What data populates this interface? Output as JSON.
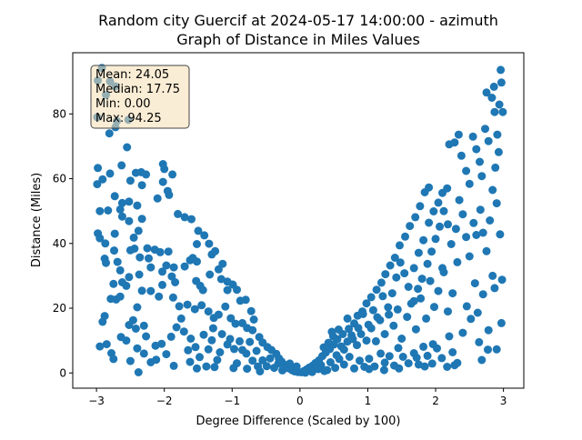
{
  "chart_data": {
    "type": "scatter",
    "title_line1": "Random city Guercif at 2024-05-17 14:00:00  - azimuth",
    "title_line2": "Graph of Distance in Miles Values",
    "xlabel": "Degree Difference (Scaled by 100)",
    "ylabel": "Distance (Miles)",
    "xlim": [
      -3.35,
      3.3
    ],
    "ylim": [
      -4.7,
      98.9
    ],
    "xticks": [
      -3,
      -2,
      -1,
      0,
      1,
      2,
      3
    ],
    "yticks": [
      0,
      20,
      40,
      60,
      80
    ],
    "xtick_labels": [
      "−3",
      "−2",
      "−1",
      "0",
      "1",
      "2",
      "3"
    ],
    "ytick_labels": [
      "0",
      "20",
      "40",
      "60",
      "80"
    ],
    "grid": false,
    "marker_color": "#1f77b4",
    "stats": {
      "mean": "Mean: 24.05",
      "median": "Median: 17.75",
      "min": "Min: 0.00",
      "max": "Max: 94.25"
    },
    "stats_box_fill": "#f5deb3",
    "points": [
      [
        -2.92,
        94.2
      ],
      [
        -2.98,
        90.3
      ],
      [
        -2.8,
        90.0
      ],
      [
        -2.72,
        88.5
      ],
      [
        -2.86,
        85.9
      ],
      [
        -2.99,
        79.0
      ],
      [
        -2.7,
        77.8
      ],
      [
        -2.53,
        78.2
      ],
      [
        -2.72,
        75.9
      ],
      [
        -2.81,
        74.0
      ],
      [
        -2.55,
        69.7
      ],
      [
        -2.63,
        64.1
      ],
      [
        -2.98,
        63.3
      ],
      [
        -2.99,
        58.3
      ],
      [
        -2.91,
        59.8
      ],
      [
        -2.8,
        61.6
      ],
      [
        -2.5,
        59.4
      ],
      [
        -2.42,
        61.8
      ],
      [
        -2.34,
        62.0
      ],
      [
        -2.27,
        61.3
      ],
      [
        -2.33,
        58.0
      ],
      [
        -2.02,
        64.5
      ],
      [
        -2.0,
        63.0
      ],
      [
        -1.88,
        61.3
      ],
      [
        -2.02,
        59.0
      ],
      [
        -1.95,
        56.2
      ],
      [
        -1.93,
        55.0
      ],
      [
        -2.1,
        53.9
      ],
      [
        -2.73,
        54.6
      ],
      [
        -2.95,
        50.0
      ],
      [
        -2.83,
        50.2
      ],
      [
        -2.65,
        50.5
      ],
      [
        -2.62,
        52.5
      ],
      [
        -2.52,
        52.9
      ],
      [
        -2.4,
        51.7
      ],
      [
        -2.62,
        48.3
      ],
      [
        -2.52,
        46.9
      ],
      [
        -2.33,
        47.6
      ],
      [
        -2.38,
        43.9
      ],
      [
        -2.45,
        41.8
      ],
      [
        -2.73,
        43.0
      ],
      [
        -2.98,
        43.1
      ],
      [
        -2.95,
        41.6
      ],
      [
        -2.87,
        40.0
      ],
      [
        -2.74,
        37.8
      ],
      [
        -2.88,
        35.3
      ],
      [
        -2.86,
        34.0
      ],
      [
        -2.69,
        34.3
      ],
      [
        -2.65,
        31.7
      ],
      [
        -2.5,
        37.9
      ],
      [
        -2.44,
        38.4
      ],
      [
        -2.36,
        35.7
      ],
      [
        -2.25,
        38.5
      ],
      [
        -2.14,
        38.1
      ],
      [
        -2.23,
        35.4
      ],
      [
        -2.2,
        32.6
      ],
      [
        -2.06,
        37.3
      ],
      [
        -1.94,
        37.5
      ],
      [
        -1.97,
        33.2
      ],
      [
        -1.86,
        32.6
      ],
      [
        -1.89,
        29.8
      ],
      [
        -2.03,
        31.3
      ],
      [
        -1.84,
        28.0
      ],
      [
        -1.8,
        49.1
      ],
      [
        -1.7,
        48.1
      ],
      [
        -1.6,
        47.5
      ],
      [
        -1.5,
        43.9
      ],
      [
        -1.41,
        42.5
      ],
      [
        -1.34,
        39.9
      ],
      [
        -1.3,
        36.6
      ],
      [
        -1.25,
        37.6
      ],
      [
        -1.52,
        39.8
      ],
      [
        -1.58,
        35.5
      ],
      [
        -1.52,
        34.4
      ],
      [
        -1.62,
        34.8
      ],
      [
        -1.7,
        32.9
      ],
      [
        -1.53,
        28.4
      ],
      [
        -1.47,
        26.9
      ],
      [
        -1.43,
        25.6
      ],
      [
        -1.33,
        30.4
      ],
      [
        -1.2,
        32.0
      ],
      [
        -1.14,
        33.7
      ],
      [
        -1.16,
        29.0
      ],
      [
        -1.07,
        28.2
      ],
      [
        -1.07,
        25.6
      ],
      [
        -0.99,
        27.3
      ],
      [
        -0.93,
        25.7
      ],
      [
        -0.88,
        22.3
      ],
      [
        -0.8,
        22.6
      ],
      [
        -0.72,
        19.1
      ],
      [
        -0.68,
        16.5
      ],
      [
        -2.56,
        26.9
      ],
      [
        -2.71,
        22.7
      ],
      [
        -2.65,
        23.6
      ],
      [
        -2.79,
        22.9
      ],
      [
        -2.75,
        27.5
      ],
      [
        -2.62,
        28.0
      ],
      [
        -2.52,
        29.6
      ],
      [
        -2.37,
        30.4
      ],
      [
        -2.33,
        25.4
      ],
      [
        -2.2,
        25.3
      ],
      [
        -2.08,
        23.6
      ],
      [
        -2.03,
        27.2
      ],
      [
        -1.87,
        23.3
      ],
      [
        -1.78,
        20.6
      ],
      [
        -1.66,
        21.1
      ],
      [
        -1.55,
        19.7
      ],
      [
        -1.45,
        20.9
      ],
      [
        -1.35,
        19.0
      ],
      [
        -1.27,
        17.0
      ],
      [
        -1.2,
        18.0
      ],
      [
        -1.1,
        20.5
      ],
      [
        -1.02,
        16.9
      ],
      [
        -0.95,
        15.2
      ],
      [
        -0.85,
        15.4
      ],
      [
        -0.78,
        13.9
      ],
      [
        -0.7,
        13.2
      ],
      [
        -0.6,
        11.1
      ],
      [
        -0.55,
        9.4
      ],
      [
        -0.48,
        8.0
      ],
      [
        -0.42,
        7.1
      ],
      [
        -0.35,
        5.9
      ],
      [
        -0.31,
        4.5
      ],
      [
        -0.27,
        3.5
      ],
      [
        -0.22,
        2.5
      ],
      [
        -0.18,
        1.5
      ],
      [
        -0.12,
        0.9
      ],
      [
        -0.08,
        0.5
      ],
      [
        -0.03,
        0.3
      ],
      [
        -2.91,
        15.8
      ],
      [
        -2.88,
        17.6
      ],
      [
        -2.95,
        8.2
      ],
      [
        -2.85,
        8.9
      ],
      [
        -2.78,
        6.1
      ],
      [
        -2.75,
        4.3
      ],
      [
        -2.64,
        11.1
      ],
      [
        -2.56,
        10.0
      ],
      [
        -2.52,
        14.8
      ],
      [
        -2.46,
        16.3
      ],
      [
        -2.4,
        20.3
      ],
      [
        -2.42,
        13.7
      ],
      [
        -2.3,
        14.6
      ],
      [
        -2.27,
        11.3
      ],
      [
        -2.4,
        7.6
      ],
      [
        -2.3,
        6.0
      ],
      [
        -2.2,
        3.3
      ],
      [
        -2.13,
        8.4
      ],
      [
        -2.12,
        4.1
      ],
      [
        -2.04,
        9.0
      ],
      [
        -1.97,
        5.8
      ],
      [
        -1.9,
        11.2
      ],
      [
        -1.82,
        14.1
      ],
      [
        -1.75,
        16.8
      ],
      [
        -1.71,
        12.8
      ],
      [
        -1.65,
        7.0
      ],
      [
        -1.61,
        10.6
      ],
      [
        -1.54,
        8.0
      ],
      [
        -1.48,
        4.9
      ],
      [
        -1.42,
        11.8
      ],
      [
        -1.35,
        7.3
      ],
      [
        -1.3,
        10.1
      ],
      [
        -1.28,
        13.8
      ],
      [
        -1.22,
        4.0
      ],
      [
        -1.18,
        6.4
      ],
      [
        -1.15,
        12.0
      ],
      [
        -1.07,
        8.8
      ],
      [
        -1.03,
        10.5
      ],
      [
        -0.97,
        7.4
      ],
      [
        -0.93,
        3.0
      ],
      [
        -0.89,
        9.8
      ],
      [
        -0.85,
        7.1
      ],
      [
        -0.79,
        6.0
      ],
      [
        -0.74,
        9.6
      ],
      [
        -0.7,
        3.8
      ],
      [
        -0.64,
        6.8
      ],
      [
        -0.62,
        2.0
      ],
      [
        -0.55,
        3.9
      ],
      [
        -0.49,
        2.1
      ],
      [
        -0.44,
        4.5
      ],
      [
        -0.38,
        1.6
      ],
      [
        -0.32,
        2.9
      ],
      [
        -0.26,
        0.8
      ],
      [
        -0.2,
        1.8
      ],
      [
        -0.15,
        2.9
      ],
      [
        -0.09,
        1.2
      ],
      [
        -0.05,
        2.0
      ],
      [
        -2.5,
        3.7
      ],
      [
        -2.38,
        0.2
      ],
      [
        -1.86,
        2.2
      ],
      [
        -1.62,
        3.4
      ],
      [
        -1.52,
        1.4
      ],
      [
        -1.38,
        2.0
      ],
      [
        -1.26,
        1.8
      ],
      [
        -0.98,
        1.5
      ],
      [
        -0.78,
        1.3
      ],
      [
        -0.59,
        0.5
      ],
      [
        0.02,
        0.2
      ],
      [
        0.06,
        0.6
      ],
      [
        0.1,
        1.1
      ],
      [
        0.14,
        1.7
      ],
      [
        0.19,
        2.3
      ],
      [
        0.23,
        3.1
      ],
      [
        0.28,
        3.9
      ],
      [
        0.33,
        5.2
      ],
      [
        0.38,
        6.3
      ],
      [
        0.44,
        7.4
      ],
      [
        0.5,
        8.8
      ],
      [
        0.55,
        10.4
      ],
      [
        0.63,
        12.0
      ],
      [
        0.72,
        13.6
      ],
      [
        0.8,
        15.3
      ],
      [
        0.85,
        17.7
      ],
      [
        0.92,
        19.0
      ],
      [
        0.98,
        21.5
      ],
      [
        1.05,
        23.4
      ],
      [
        1.13,
        25.7
      ],
      [
        1.2,
        27.9
      ],
      [
        1.26,
        30.5
      ],
      [
        1.33,
        33.2
      ],
      [
        1.4,
        35.6
      ],
      [
        1.47,
        39.4
      ],
      [
        1.55,
        42.1
      ],
      [
        1.62,
        45.4
      ],
      [
        1.7,
        48.1
      ],
      [
        1.77,
        51.5
      ],
      [
        1.84,
        55.8
      ],
      [
        1.9,
        57.3
      ],
      [
        0.15,
        0.6
      ],
      [
        0.22,
        1.5
      ],
      [
        0.31,
        2.4
      ],
      [
        0.4,
        0.9
      ],
      [
        0.45,
        3.3
      ],
      [
        0.52,
        1.6
      ],
      [
        0.58,
        4.3
      ],
      [
        0.65,
        2.6
      ],
      [
        0.73,
        5.0
      ],
      [
        0.8,
        1.4
      ],
      [
        0.88,
        3.8
      ],
      [
        0.95,
        1.9
      ],
      [
        1.02,
        4.4
      ],
      [
        1.1,
        2.0
      ],
      [
        1.19,
        6.0
      ],
      [
        1.25,
        3.2
      ],
      [
        1.32,
        5.2
      ],
      [
        1.39,
        2.3
      ],
      [
        1.45,
        7.7
      ],
      [
        1.52,
        5.0
      ],
      [
        1.6,
        3.0
      ],
      [
        1.68,
        6.1
      ],
      [
        1.75,
        2.6
      ],
      [
        1.82,
        8.1
      ],
      [
        1.88,
        5.3
      ],
      [
        1.95,
        2.9
      ],
      [
        2.02,
        7.6
      ],
      [
        2.09,
        4.6
      ],
      [
        2.17,
        1.9
      ],
      [
        2.25,
        6.4
      ],
      [
        2.32,
        3.1
      ],
      [
        0.35,
        7.9
      ],
      [
        0.42,
        9.3
      ],
      [
        0.49,
        11.3
      ],
      [
        0.57,
        13.4
      ],
      [
        0.65,
        7.2
      ],
      [
        0.7,
        9.7
      ],
      [
        0.76,
        11.6
      ],
      [
        0.84,
        8.6
      ],
      [
        0.9,
        12.0
      ],
      [
        0.98,
        10.0
      ],
      [
        1.05,
        13.8
      ],
      [
        1.12,
        9.8
      ],
      [
        1.18,
        16.3
      ],
      [
        1.25,
        12.0
      ],
      [
        1.31,
        18.0
      ],
      [
        1.38,
        14.6
      ],
      [
        1.44,
        19.6
      ],
      [
        1.5,
        10.6
      ],
      [
        1.58,
        17.3
      ],
      [
        1.64,
        21.4
      ],
      [
        1.71,
        13.5
      ],
      [
        1.78,
        23.0
      ],
      [
        1.86,
        16.8
      ],
      [
        1.92,
        28.4
      ],
      [
        1.98,
        20.4
      ],
      [
        2.04,
        25.3
      ],
      [
        2.12,
        31.1
      ],
      [
        2.18,
        19.0
      ],
      [
        2.25,
        24.6
      ],
      [
        2.32,
        34.2
      ],
      [
        2.4,
        12.4
      ],
      [
        2.46,
        20.6
      ],
      [
        2.52,
        16.7
      ],
      [
        2.58,
        27.7
      ],
      [
        2.64,
        9.5
      ],
      [
        2.7,
        24.3
      ],
      [
        2.78,
        13.2
      ],
      [
        2.84,
        30.0
      ],
      [
        2.9,
        7.3
      ],
      [
        2.97,
        15.4
      ],
      [
        1.68,
        32.4
      ],
      [
        1.75,
        37.1
      ],
      [
        1.82,
        41.0
      ],
      [
        1.9,
        46.4
      ],
      [
        1.97,
        49.9
      ],
      [
        2.04,
        52.6
      ],
      [
        2.1,
        55.6
      ],
      [
        2.17,
        57.0
      ],
      [
        2.2,
        70.6
      ],
      [
        2.28,
        71.2
      ],
      [
        2.34,
        73.6
      ],
      [
        2.38,
        67.1
      ],
      [
        2.45,
        62.4
      ],
      [
        2.5,
        58.4
      ],
      [
        2.55,
        73.0
      ],
      [
        2.6,
        69.1
      ],
      [
        2.65,
        65.2
      ],
      [
        2.68,
        60.8
      ],
      [
        2.73,
        75.4
      ],
      [
        2.78,
        71.6
      ],
      [
        2.83,
        85.0
      ],
      [
        2.87,
        80.6
      ],
      [
        2.91,
        73.6
      ],
      [
        2.94,
        82.9
      ],
      [
        2.97,
        89.7
      ],
      [
        2.96,
        93.6
      ],
      [
        2.86,
        88.4
      ],
      [
        2.75,
        86.6
      ],
      [
        2.99,
        80.6
      ],
      [
        2.93,
        68.2
      ],
      [
        2.88,
        63.4
      ],
      [
        2.9,
        52.4
      ],
      [
        2.84,
        56.5
      ],
      [
        2.8,
        47.1
      ],
      [
        2.75,
        37.6
      ],
      [
        2.7,
        43.3
      ],
      [
        2.66,
        50.4
      ],
      [
        2.6,
        42.6
      ],
      [
        2.56,
        46.3
      ],
      [
        2.5,
        36.0
      ],
      [
        2.45,
        42.0
      ],
      [
        2.4,
        49.0
      ],
      [
        2.35,
        53.4
      ],
      [
        2.3,
        44.5
      ],
      [
        2.23,
        39.8
      ],
      [
        2.18,
        45.9
      ],
      [
        2.12,
        50.0
      ],
      [
        2.06,
        45.2
      ],
      [
        2.0,
        41.4
      ],
      [
        1.94,
        37.5
      ],
      [
        1.88,
        33.7
      ],
      [
        1.8,
        29.1
      ],
      [
        1.74,
        26.0
      ],
      [
        1.68,
        22.2
      ],
      [
        1.6,
        26.6
      ],
      [
        1.54,
        30.8
      ],
      [
        1.48,
        34.1
      ],
      [
        1.42,
        29.5
      ],
      [
        1.36,
        24.6
      ],
      [
        1.3,
        20.3
      ],
      [
        1.22,
        23.7
      ],
      [
        1.14,
        17.2
      ],
      [
        1.08,
        19.4
      ],
      [
        1.01,
        14.9
      ],
      [
        0.93,
        18.2
      ],
      [
        0.86,
        13.9
      ],
      [
        0.78,
        10.5
      ],
      [
        0.7,
        16.8
      ],
      [
        0.61,
        8.2
      ],
      [
        0.54,
        5.5
      ],
      [
        0.47,
        12.7
      ],
      [
        0.36,
        0.6
      ],
      [
        0.27,
        1.2
      ],
      [
        0.18,
        0.3
      ],
      [
        0.08,
        0.1
      ],
      [
        2.95,
        42.8
      ],
      [
        2.98,
        28.8
      ],
      [
        2.77,
        7.2
      ],
      [
        2.87,
        26.2
      ],
      [
        2.62,
        18.6
      ],
      [
        2.68,
        4.0
      ],
      [
        2.1,
        32.4
      ],
      [
        2.2,
        11.3
      ],
      [
        2.28,
        2.4
      ],
      [
        1.96,
        8.9
      ],
      [
        1.84,
        2.0
      ],
      [
        1.72,
        4.7
      ],
      [
        1.46,
        1.4
      ],
      [
        1.24,
        0.9
      ],
      [
        1.02,
        1.2
      ]
    ]
  }
}
